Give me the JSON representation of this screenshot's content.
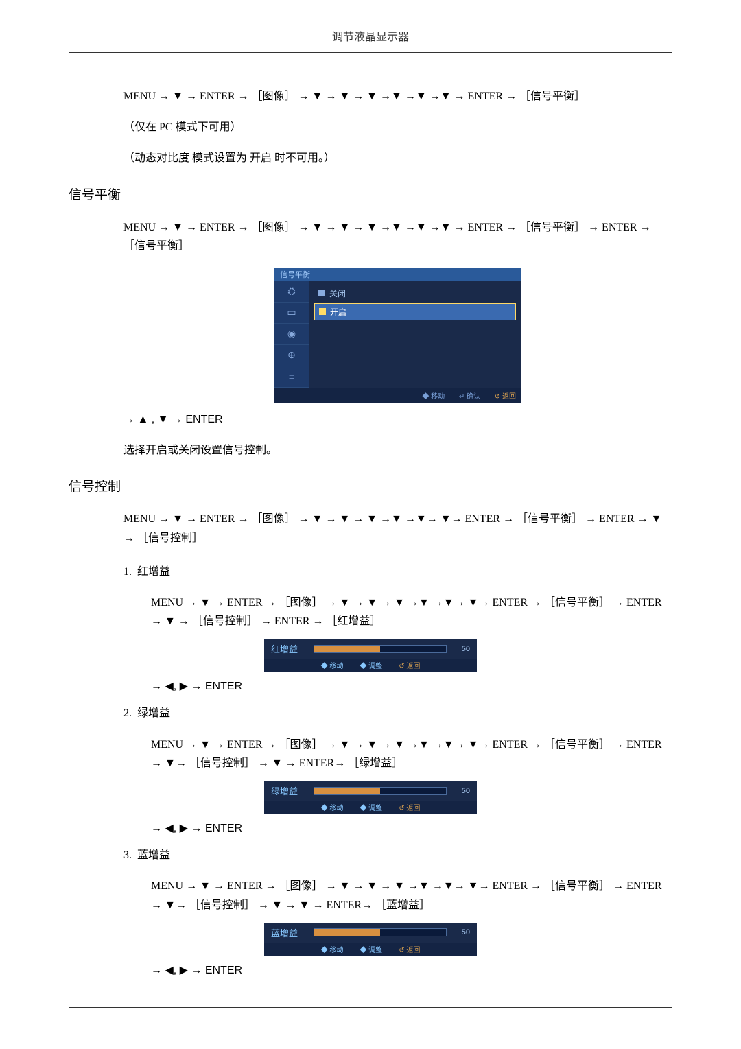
{
  "header": {
    "title": "调节液晶显示器"
  },
  "intro": {
    "path": "MENU → ▼ → ENTER → ［图像］ → ▼ → ▼ → ▼ →▼ →▼ →▼ → ENTER → ［信号平衡］",
    "note1": "（仅在 PC 模式下可用）",
    "note2": "（动态对比度 模式设置为 开启 时不可用。）"
  },
  "sec1": {
    "heading": "信号平衡",
    "path": "MENU → ▼ → ENTER → ［图像］ → ▼ → ▼ → ▼ →▼ →▼ →▼ → ENTER → ［信号平衡］ → ENTER → ［信号平衡］",
    "osd": {
      "title": "信号平衡",
      "opt_off": "关闭",
      "opt_on": "开启",
      "footer_move": "◆ 移动",
      "footer_ok": "↵ 确认",
      "footer_ret": "↺ 返回"
    },
    "nav": "→ ▲ , ▼ → ENTER",
    "desc": "选择开启或关闭设置信号控制。"
  },
  "sec2": {
    "heading": "信号控制",
    "path": "MENU → ▼ → ENTER → ［图像］ → ▼ → ▼ → ▼ →▼ →▼→ ▼→ ENTER → ［信号平衡］ → ENTER → ▼ → ［信号控制］",
    "items": [
      {
        "num": "1.",
        "label": "红增益",
        "path": "MENU → ▼ → ENTER → ［图像］ → ▼ → ▼ → ▼ →▼ →▼→ ▼→ ENTER → ［信号平衡］ → ENTER → ▼ → ［信号控制］ → ENTER → ［红增益］",
        "slider_label": "红增益",
        "slider_value": "50",
        "slider_pct": 50,
        "nav": "→ ◀, ▶ → ENTER"
      },
      {
        "num": "2.",
        "label": "绿增益",
        "path": "MENU → ▼ → ENTER → ［图像］ → ▼ → ▼ → ▼ →▼ →▼→ ▼→ ENTER → ［信号平衡］ → ENTER → ▼→ ［信号控制］ → ▼ → ENTER→ ［绿增益］",
        "slider_label": "绿增益",
        "slider_value": "50",
        "slider_pct": 50,
        "nav": "→ ◀, ▶ → ENTER"
      },
      {
        "num": "3.",
        "label": "蓝增益",
        "path": "MENU → ▼ → ENTER → ［图像］ → ▼ → ▼ → ▼ →▼ →▼→ ▼→ ENTER → ［信号平衡］ → ENTER → ▼→ ［信号控制］ → ▼ → ▼ → ENTER→ ［蓝增益］",
        "slider_label": "蓝增益",
        "slider_value": "50",
        "slider_pct": 50,
        "nav": "→ ◀, ▶ → ENTER"
      }
    ],
    "slider_footer": {
      "move": "◆ 移动",
      "adj": "◆ 调整",
      "ret": "↺ 返回"
    }
  }
}
